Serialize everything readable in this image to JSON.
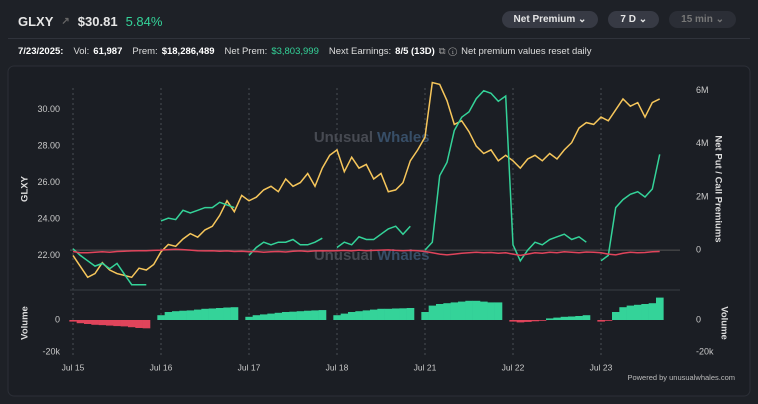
{
  "header": {
    "ticker": "GLXY",
    "price": "$30.81",
    "change": "5.84%",
    "buttons": [
      "Net Premium",
      "7 D",
      "15 min"
    ]
  },
  "info": {
    "date": "7/23/2025:",
    "vol_label": "Vol:",
    "vol": "61,987",
    "prem_label": "Prem:",
    "prem": "$18,286,489",
    "net_label": "Net Prem:",
    "net": "$3,803,999",
    "earn_label": "Next Earnings:",
    "earn": "8/5 (13D)",
    "note": "Net premium values reset daily"
  },
  "watermark": [
    "Unusual",
    "Whales"
  ],
  "footer": "Powered by unusualwhales.com",
  "chart_data": [
    {
      "type": "line",
      "y_label": "GLXY",
      "y2_label": "Net Put / Call Premiums",
      "categories": [
        "Jul 15",
        null,
        null,
        null,
        null,
        null,
        null,
        null,
        null,
        null,
        null,
        null,
        "Jul 16",
        null,
        null,
        null,
        null,
        null,
        null,
        null,
        null,
        null,
        null,
        null,
        "Jul 17",
        null,
        null,
        null,
        null,
        null,
        null,
        null,
        null,
        null,
        null,
        null,
        "Jul 18",
        null,
        null,
        null,
        null,
        null,
        null,
        null,
        null,
        null,
        null,
        null,
        "Jul 21",
        null,
        null,
        null,
        null,
        null,
        null,
        null,
        null,
        null,
        null,
        null,
        "Jul 22",
        null,
        null,
        null,
        null,
        null,
        null,
        null,
        null,
        null,
        null,
        null,
        "Jul 23",
        null,
        null,
        null,
        null,
        null,
        null,
        null,
        null
      ],
      "ylim": [
        20.1,
        31.2
      ],
      "yticks": [
        {
          "value": 22,
          "label": "22.00"
        },
        {
          "value": 24,
          "label": "24.00"
        },
        {
          "value": 26,
          "label": "26.00"
        },
        {
          "value": 28,
          "label": "28.00"
        },
        {
          "value": 30,
          "label": "30.00"
        }
      ],
      "y2lim": [
        -1500000,
        6100000
      ],
      "y2ticks": [
        0,
        {
          "value": 2000000,
          "label": "2M"
        },
        {
          "value": 4000000,
          "label": "4M"
        },
        {
          "value": 6000000,
          "label": "6M"
        }
      ],
      "series": [
        {
          "color": "#f6c65b",
          "values": [
            22.0,
            21.4,
            20.8,
            21.0,
            21.6,
            21.2,
            21.0,
            20.9,
            20.8,
            21.3,
            21.2,
            21.5,
            22.2,
            22.6,
            22.5,
            22.9,
            23.2,
            23.0,
            23.4,
            23.6,
            24.2,
            25.0,
            24.4,
            25.3,
            25.0,
            25.2,
            25.6,
            25.8,
            25.5,
            26.2,
            25.8,
            26.0,
            26.5,
            25.8,
            26.8,
            27.5,
            27.8,
            26.6,
            27.4,
            26.8,
            27.0,
            26.2,
            26.5,
            25.5,
            25.6,
            26.0,
            27.2,
            27.8,
            28.5,
            31.5,
            31.4,
            30.5,
            29.2,
            29.4,
            28.8,
            28.0,
            27.6,
            27.8,
            27.2,
            27.5,
            27.2,
            26.8,
            27.3,
            27.5,
            27.2,
            27.6,
            27.3,
            27.8,
            28.2,
            29.0,
            29.3,
            29.2,
            29.6,
            29.4,
            30.0,
            30.6,
            30.2,
            30.4,
            29.6,
            30.4,
            30.6
          ]
        },
        {
          "color": "#34d399",
          "axis": "y2",
          "values": [
            50000,
            -200000,
            -400000,
            -600000,
            -500000,
            -700000,
            -500000,
            -900000,
            -1300000,
            -1300000,
            -1300000,
            null,
            1100000,
            1200000,
            1150000,
            1500000,
            1400000,
            1500000,
            1600000,
            1600000,
            1800000,
            1700000,
            1600000,
            null,
            -200000,
            100000,
            300000,
            200000,
            300000,
            300000,
            400000,
            200000,
            200000,
            300000,
            450000,
            null,
            100000,
            300000,
            200000,
            500000,
            400000,
            400000,
            600000,
            800000,
            900000,
            600000,
            900000,
            null,
            0,
            300000,
            2800000,
            3300000,
            4500000,
            5000000,
            5200000,
            5700000,
            6000000,
            5900000,
            5600000,
            5800000,
            200000,
            -400000,
            0,
            300000,
            200000,
            400000,
            500000,
            600000,
            400000,
            500000,
            300000,
            null,
            -400000,
            -200000,
            1600000,
            1900000,
            2100000,
            2200000,
            2000000,
            2300000,
            3600000
          ]
        },
        {
          "color": "#e0445b",
          "axis": "y2",
          "values": [
            -50000,
            -100000,
            -100000,
            -80000,
            -60000,
            -80000,
            -50000,
            -40000,
            -30000,
            -20000,
            -20000,
            -10000,
            0,
            20000,
            30000,
            20000,
            0,
            -20000,
            -30000,
            -20000,
            -40000,
            -30000,
            -50000,
            -40000,
            -60000,
            -50000,
            -80000,
            -60000,
            -50000,
            -70000,
            -40000,
            -30000,
            -50000,
            -30000,
            -20000,
            -30000,
            -20000,
            -10000,
            -30000,
            0,
            -20000,
            -10000,
            0,
            10000,
            -10000,
            -20000,
            -10000,
            -20000,
            -50000,
            -100000,
            -150000,
            -180000,
            -150000,
            -120000,
            -100000,
            -80000,
            -100000,
            -90000,
            -120000,
            -100000,
            -150000,
            -200000,
            -150000,
            -100000,
            -120000,
            -80000,
            -100000,
            -60000,
            -80000,
            -100000,
            -70000,
            -80000,
            -100000,
            -150000,
            -180000,
            -120000,
            -80000,
            -100000,
            -90000,
            -60000,
            -50000
          ]
        }
      ]
    },
    {
      "type": "bar",
      "y_label": "Volume",
      "ylim": [
        -22500,
        18750
      ],
      "yticks": [
        0,
        {
          "value": -20000,
          "label": "-20k"
        }
      ],
      "series": [
        {
          "color": "#34d399",
          "negative_color": "#e0445b",
          "values": [
            -1000,
            -2000,
            -2500,
            -3000,
            -3200,
            -3500,
            -3800,
            -4000,
            -4500,
            -5000,
            -5200,
            null,
            3000,
            5000,
            5500,
            5800,
            6000,
            6500,
            7000,
            7200,
            7500,
            7800,
            8000,
            null,
            2000,
            3000,
            3500,
            4000,
            4500,
            5000,
            5200,
            5500,
            5800,
            6000,
            6200,
            null,
            3000,
            4000,
            5000,
            5500,
            6000,
            6500,
            7000,
            7000,
            7200,
            7300,
            7500,
            null,
            5000,
            9000,
            10000,
            10500,
            11000,
            11500,
            12000,
            12000,
            11500,
            11000,
            11000,
            null,
            -1000,
            -1500,
            -1200,
            -800,
            -500,
            1000,
            1500,
            2000,
            2200,
            2500,
            3000,
            null,
            -1000,
            -500,
            5000,
            8000,
            9000,
            9500,
            10000,
            10500,
            14000
          ]
        }
      ]
    }
  ]
}
